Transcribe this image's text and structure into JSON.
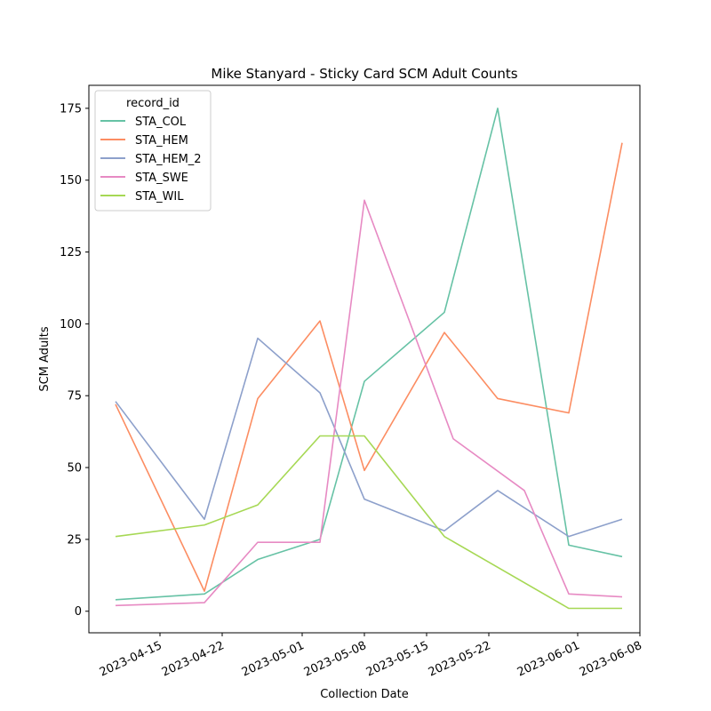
{
  "chart_data": {
    "type": "line",
    "title": "Mike Stanyard - Sticky Card SCM Adult Counts",
    "xlabel": "Collection Date",
    "ylabel": "SCM Adults",
    "x_range": [
      "2023-04-07",
      "2023-06-08"
    ],
    "ylim": [
      -7.5,
      183
    ],
    "x_ticks": [
      "2023-04-15",
      "2023-04-22",
      "2023-05-01",
      "2023-05-08",
      "2023-05-15",
      "2023-05-22",
      "2023-06-01",
      "2023-06-08"
    ],
    "y_ticks": [
      0,
      25,
      50,
      75,
      100,
      125,
      150,
      175
    ],
    "grid": false,
    "legend": {
      "title": "record_id",
      "placement": "top-left"
    },
    "series": [
      {
        "name": "STA_COL",
        "color": "#66c2a5",
        "points": [
          [
            "2023-04-10",
            4
          ],
          [
            "2023-04-20",
            6
          ],
          [
            "2023-04-26",
            18
          ],
          [
            "2023-05-03",
            25
          ],
          [
            "2023-05-08",
            80
          ],
          [
            "2023-05-17",
            104
          ],
          [
            "2023-05-23",
            175
          ],
          [
            "2023-05-31",
            23
          ],
          [
            "2023-06-06",
            19
          ]
        ]
      },
      {
        "name": "STA_HEM",
        "color": "#fc8d62",
        "points": [
          [
            "2023-04-10",
            72
          ],
          [
            "2023-04-20",
            7
          ],
          [
            "2023-04-26",
            74
          ],
          [
            "2023-05-03",
            101
          ],
          [
            "2023-05-08",
            49
          ],
          [
            "2023-05-17",
            97
          ],
          [
            "2023-05-23",
            74
          ],
          [
            "2023-05-31",
            69
          ],
          [
            "2023-06-06",
            163
          ]
        ]
      },
      {
        "name": "STA_HEM_2",
        "color": "#8da0cb",
        "points": [
          [
            "2023-04-10",
            73
          ],
          [
            "2023-04-20",
            32
          ],
          [
            "2023-04-26",
            95
          ],
          [
            "2023-05-03",
            76
          ],
          [
            "2023-05-08",
            39
          ],
          [
            "2023-05-17",
            28
          ],
          [
            "2023-05-23",
            42
          ],
          [
            "2023-05-31",
            26
          ],
          [
            "2023-06-06",
            32
          ]
        ]
      },
      {
        "name": "STA_SWE",
        "color": "#e78ac3",
        "points": [
          [
            "2023-04-10",
            2
          ],
          [
            "2023-04-20",
            3
          ],
          [
            "2023-04-26",
            24
          ],
          [
            "2023-05-03",
            24
          ],
          [
            "2023-05-08",
            143
          ],
          [
            "2023-05-18",
            60
          ],
          [
            "2023-05-26",
            42
          ],
          [
            "2023-05-31",
            6
          ],
          [
            "2023-06-06",
            5
          ]
        ]
      },
      {
        "name": "STA_WIL",
        "color": "#a6d854",
        "points": [
          [
            "2023-04-10",
            26
          ],
          [
            "2023-04-20",
            30
          ],
          [
            "2023-04-26",
            37
          ],
          [
            "2023-05-03",
            61
          ],
          [
            "2023-05-08",
            61
          ],
          [
            "2023-05-17",
            26
          ],
          [
            "2023-05-31",
            1
          ],
          [
            "2023-06-06",
            1
          ]
        ]
      }
    ]
  }
}
